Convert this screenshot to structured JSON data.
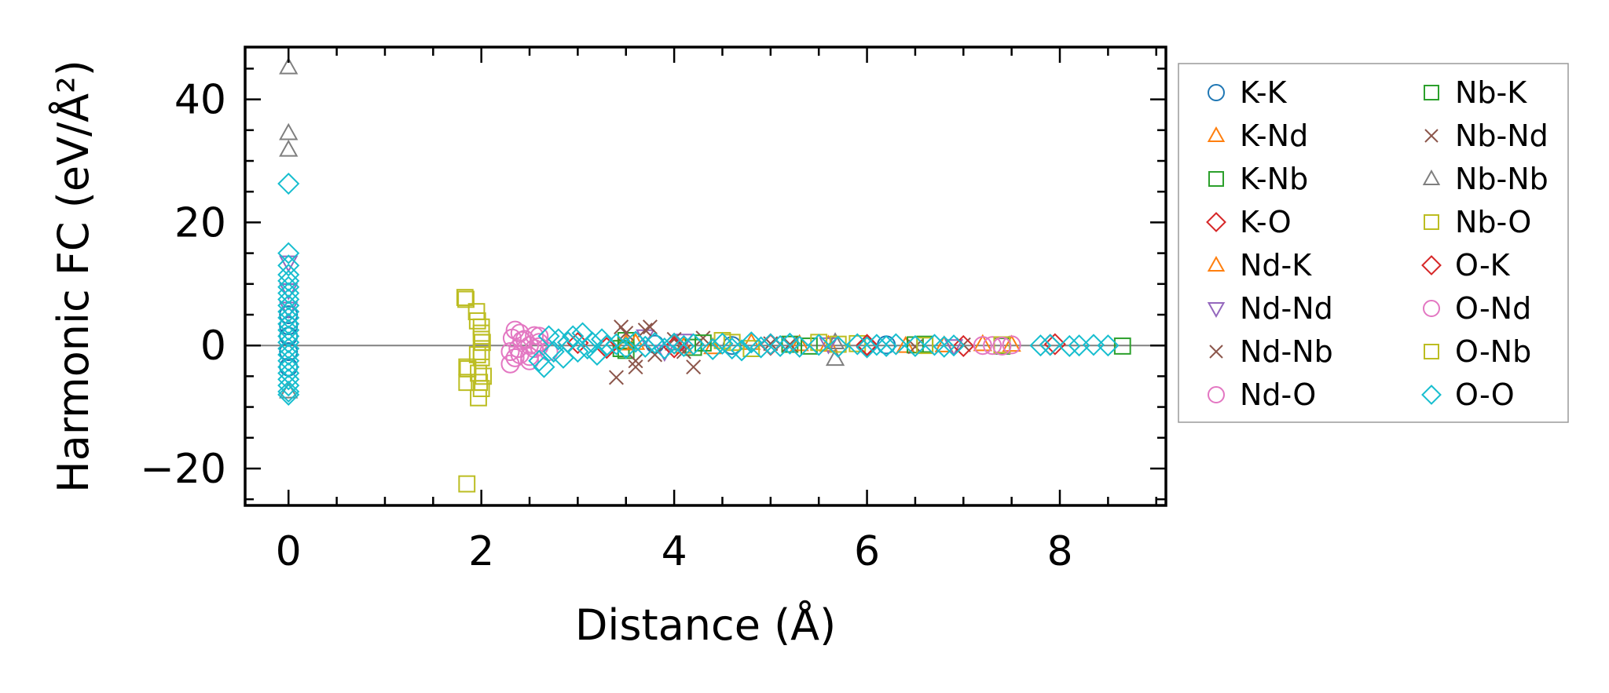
{
  "chart_data": {
    "type": "scatter",
    "title": "",
    "xlabel": "Distance (Å)",
    "ylabel": "Harmonic FC (eV/Å²)",
    "xlim": [
      -0.45,
      9.1
    ],
    "ylim": [
      -26,
      48.5
    ],
    "xticks": [
      0,
      2,
      4,
      6,
      8
    ],
    "yticks": [
      -20,
      0,
      20,
      40
    ],
    "xtick_labels": [
      "0",
      "2",
      "4",
      "6",
      "8"
    ],
    "ytick_labels": [
      "−20",
      "0",
      "20",
      "40"
    ],
    "zero_line": true,
    "grid": false,
    "legend": {
      "placement": "outside-right",
      "columns": 2
    },
    "series": [
      {
        "name": "K-K",
        "marker": "circle",
        "color": "#1f77b4",
        "points": [
          [
            0,
            3.2
          ],
          [
            0,
            1.5
          ],
          [
            0,
            -1.0
          ],
          [
            0,
            5.0
          ],
          [
            0,
            -3.5
          ],
          [
            3.8,
            0.2
          ],
          [
            4.6,
            0.0
          ],
          [
            6.2,
            0.1
          ]
        ]
      },
      {
        "name": "K-Nd",
        "marker": "triangle-up",
        "color": "#ff7f0e",
        "points": [
          [
            3.5,
            0.3
          ],
          [
            4.1,
            -0.2
          ],
          [
            4.8,
            0.4
          ],
          [
            5.6,
            0.1
          ],
          [
            6.4,
            -0.1
          ],
          [
            7.2,
            0.2
          ]
        ]
      },
      {
        "name": "K-Nb",
        "marker": "square",
        "color": "#2ca02c",
        "points": [
          [
            3.45,
            -0.5
          ],
          [
            3.5,
            0.8
          ],
          [
            4.2,
            -0.3
          ],
          [
            5.2,
            0.2
          ],
          [
            6.5,
            0.1
          ],
          [
            7.4,
            -0.1
          ]
        ]
      },
      {
        "name": "K-O",
        "marker": "diamond",
        "color": "#d62728",
        "points": [
          [
            2.9,
            0.5
          ],
          [
            3.3,
            -0.4
          ],
          [
            4.0,
            0.3
          ],
          [
            5.0,
            0.1
          ],
          [
            6.0,
            -0.2
          ],
          [
            7.9,
            0.1
          ]
        ]
      },
      {
        "name": "Nd-K",
        "marker": "triangle-up",
        "color": "#ff7f0e",
        "points": [
          [
            3.6,
            0.4
          ],
          [
            4.4,
            -0.3
          ],
          [
            5.3,
            0.2
          ],
          [
            6.8,
            0.0
          ],
          [
            7.5,
            0.1
          ]
        ]
      },
      {
        "name": "Nd-Nd",
        "marker": "triangle-down",
        "color": "#9467bd",
        "points": [
          [
            0,
            13.5
          ],
          [
            0,
            9.0
          ],
          [
            0,
            6.0
          ],
          [
            3.7,
            1.5
          ],
          [
            3.9,
            -1.0
          ],
          [
            4.1,
            0.8
          ],
          [
            5.6,
            0.2
          ],
          [
            6.9,
            -0.1
          ]
        ]
      },
      {
        "name": "Nd-Nb",
        "marker": "x",
        "color": "#8c564b",
        "points": [
          [
            3.4,
            -5.2
          ],
          [
            3.45,
            3.0
          ],
          [
            3.6,
            -3.5
          ],
          [
            3.7,
            2.5
          ],
          [
            3.8,
            -1.5
          ],
          [
            4.0,
            1.0
          ],
          [
            4.2,
            -3.5
          ],
          [
            4.3,
            1.2
          ],
          [
            5.0,
            0.3
          ],
          [
            6.5,
            -0.2
          ],
          [
            7.0,
            0.1
          ]
        ]
      },
      {
        "name": "Nd-O",
        "marker": "circle",
        "color": "#e377c2",
        "points": [
          [
            2.3,
            -3.0
          ],
          [
            2.35,
            2.5
          ],
          [
            2.4,
            -1.5
          ],
          [
            2.45,
            1.0
          ],
          [
            2.5,
            0.0
          ],
          [
            2.55,
            -0.5
          ],
          [
            2.6,
            1.5
          ],
          [
            2.35,
            -2.0
          ],
          [
            2.4,
            2.0
          ],
          [
            2.5,
            -2.5
          ],
          [
            2.6,
            0.5
          ],
          [
            2.7,
            -1.0
          ],
          [
            7.3,
            0.0
          ],
          [
            7.5,
            0.1
          ]
        ]
      },
      {
        "name": "Nb-K",
        "marker": "square",
        "color": "#2ca02c",
        "points": [
          [
            3.5,
            -0.8
          ],
          [
            4.3,
            0.4
          ],
          [
            5.4,
            -0.1
          ],
          [
            6.6,
            0.2
          ],
          [
            8.65,
            -0.1
          ]
        ]
      },
      {
        "name": "Nb-Nd",
        "marker": "x",
        "color": "#8c564b",
        "points": [
          [
            3.5,
            2.0
          ],
          [
            3.6,
            -2.5
          ],
          [
            3.75,
            3.0
          ],
          [
            4.1,
            -1.0
          ],
          [
            5.2,
            0.2
          ]
        ]
      },
      {
        "name": "Nb-Nb",
        "marker": "triangle-up",
        "color": "#7f7f7f",
        "points": [
          [
            0,
            45.2
          ],
          [
            0,
            34.5
          ],
          [
            0,
            31.8
          ],
          [
            0,
            -7.5
          ],
          [
            5.67,
            -2.2
          ],
          [
            5.67,
            0.5
          ],
          [
            4.0,
            0.3
          ]
        ]
      },
      {
        "name": "Nb-O",
        "marker": "square",
        "color": "#bcbd22",
        "points": [
          [
            1.83,
            7.8
          ],
          [
            1.85,
            -22.5
          ],
          [
            1.85,
            -3.5
          ],
          [
            1.85,
            -6.0
          ],
          [
            1.95,
            5.5
          ],
          [
            1.97,
            -8.5
          ],
          [
            2.0,
            3.0
          ],
          [
            2.0,
            1.0
          ],
          [
            2.0,
            -1.0
          ],
          [
            2.0,
            -2.0
          ],
          [
            1.97,
            -4.5
          ],
          [
            1.98,
            -6.0
          ],
          [
            2.02,
            -5.0
          ],
          [
            1.96,
            -1.5
          ],
          [
            2.0,
            2.0
          ],
          [
            4.5,
            0.8
          ],
          [
            4.8,
            -0.5
          ],
          [
            5.5,
            0.5
          ],
          [
            5.9,
            0.3
          ],
          [
            6.6,
            0.0
          ],
          [
            7.4,
            0.1
          ]
        ]
      },
      {
        "name": "O-K",
        "marker": "diamond",
        "color": "#d62728",
        "points": [
          [
            3.0,
            0.4
          ],
          [
            4.0,
            -0.3
          ],
          [
            5.0,
            0.2
          ],
          [
            6.0,
            0.1
          ],
          [
            7.0,
            -0.1
          ],
          [
            7.95,
            0.2
          ]
        ]
      },
      {
        "name": "O-Nd",
        "marker": "circle",
        "color": "#e377c2",
        "points": [
          [
            2.3,
            -1.0
          ],
          [
            2.32,
            1.2
          ],
          [
            2.38,
            -0.5
          ],
          [
            2.42,
            0.8
          ],
          [
            2.5,
            -1.8
          ],
          [
            2.55,
            1.6
          ],
          [
            2.6,
            -0.2
          ],
          [
            7.2,
            0.0
          ],
          [
            7.4,
            -0.1
          ]
        ]
      },
      {
        "name": "O-Nb",
        "marker": "square",
        "color": "#bcbd22",
        "points": [
          [
            1.84,
            7.5
          ],
          [
            1.86,
            -3.8
          ],
          [
            1.96,
            4.0
          ],
          [
            2.0,
            -7.0
          ],
          [
            2.01,
            0.5
          ],
          [
            4.6,
            0.5
          ],
          [
            5.7,
            0.2
          ]
        ]
      },
      {
        "name": "O-O",
        "marker": "diamond",
        "color": "#17becf",
        "points": [
          [
            0,
            26.3
          ],
          [
            0,
            15.0
          ],
          [
            0,
            13.0
          ],
          [
            0,
            11.5
          ],
          [
            0,
            10.5
          ],
          [
            0,
            9.5
          ],
          [
            0,
            8.5
          ],
          [
            0,
            7.5
          ],
          [
            0,
            6.5
          ],
          [
            0,
            5.5
          ],
          [
            0,
            4.5
          ],
          [
            0,
            3.5
          ],
          [
            0,
            2.5
          ],
          [
            0,
            1.5
          ],
          [
            0,
            0.5
          ],
          [
            0,
            -0.5
          ],
          [
            0,
            -1.5
          ],
          [
            0,
            -2.5
          ],
          [
            0,
            -3.5
          ],
          [
            0,
            -4.5
          ],
          [
            0,
            -5.5
          ],
          [
            0,
            -6.5
          ],
          [
            0,
            -7.5
          ],
          [
            0,
            -8.0
          ],
          [
            2.6,
            -2.5
          ],
          [
            2.65,
            -3.5
          ],
          [
            2.7,
            1.5
          ],
          [
            2.75,
            -1.0
          ],
          [
            2.8,
            1.0
          ],
          [
            2.85,
            -2.0
          ],
          [
            2.9,
            0.5
          ],
          [
            2.95,
            1.5
          ],
          [
            3.0,
            -1.0
          ],
          [
            3.05,
            2.0
          ],
          [
            3.1,
            -0.5
          ],
          [
            3.15,
            0.5
          ],
          [
            3.2,
            -1.5
          ],
          [
            3.25,
            1.0
          ],
          [
            3.3,
            0.0
          ],
          [
            3.4,
            0.2
          ],
          [
            3.5,
            -0.4
          ],
          [
            3.6,
            0.6
          ],
          [
            3.7,
            -0.2
          ],
          [
            3.8,
            0.4
          ],
          [
            3.9,
            -0.5
          ],
          [
            4.0,
            0.3
          ],
          [
            4.1,
            -0.1
          ],
          [
            4.2,
            0.2
          ],
          [
            4.4,
            -0.6
          ],
          [
            4.5,
            0.3
          ],
          [
            4.6,
            -0.5
          ],
          [
            4.7,
            -0.8
          ],
          [
            4.8,
            0.5
          ],
          [
            4.9,
            -0.3
          ],
          [
            5.0,
            0.2
          ],
          [
            5.1,
            -0.1
          ],
          [
            5.2,
            0.3
          ],
          [
            5.3,
            -0.2
          ],
          [
            5.5,
            0.1
          ],
          [
            5.7,
            -0.2
          ],
          [
            5.9,
            0.2
          ],
          [
            6.0,
            -0.3
          ],
          [
            6.1,
            0.1
          ],
          [
            6.2,
            -0.1
          ],
          [
            6.3,
            0.2
          ],
          [
            6.5,
            -0.1
          ],
          [
            6.7,
            0.1
          ],
          [
            6.8,
            -0.2
          ],
          [
            6.9,
            0.0
          ],
          [
            7.8,
            0.0
          ],
          [
            7.9,
            0.1
          ],
          [
            8.1,
            -0.1
          ],
          [
            8.2,
            0.0
          ],
          [
            8.35,
            0.1
          ],
          [
            8.5,
            0.0
          ]
        ]
      }
    ]
  }
}
